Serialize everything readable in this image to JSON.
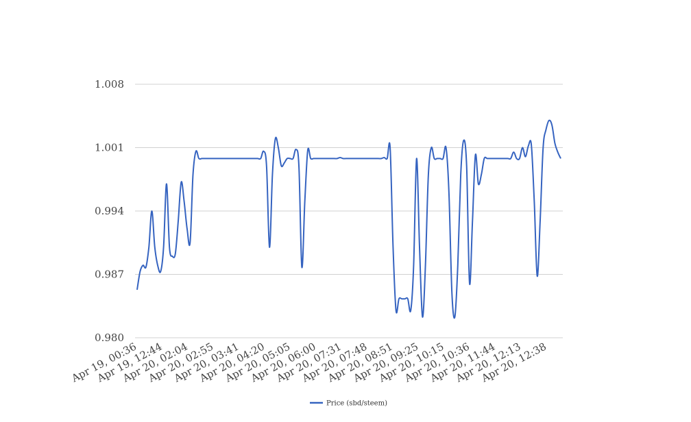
{
  "chart_data": {
    "type": "line",
    "title": "",
    "xlabel": "",
    "ylabel": "",
    "ylim": [
      0.98,
      1.008
    ],
    "y_ticks": [
      "0.980",
      "0.987",
      "0.994",
      "1.001",
      "1.008"
    ],
    "x_ticks": [
      "Apr 19, 00:36",
      "Apr 19, 12:44",
      "Apr 20, 02:04",
      "Apr 20, 02:55",
      "Apr 20, 03:41",
      "Apr 20, 04:20",
      "Apr 20, 05:05",
      "Apr 20, 06:00",
      "Apr 20, 07:31",
      "Apr 20, 07:48",
      "Apr 20, 08:51",
      "Apr 20, 09:25",
      "Apr 20, 10:15",
      "Apr 20, 10:36",
      "Apr 20, 11:44",
      "Apr 20, 12:13",
      "Apr 20, 12:38"
    ],
    "grid": true,
    "legend_position": "bottom",
    "series": [
      {
        "name": "Price (sbd/steem)",
        "color": "#3563c0",
        "values": [
          0.9853,
          0.9873,
          0.988,
          0.9878,
          0.99,
          0.994,
          0.99,
          0.988,
          0.9873,
          0.99,
          0.997,
          0.99,
          0.989,
          0.9893,
          0.993,
          0.9972,
          0.995,
          0.992,
          0.9905,
          0.998,
          1.0006,
          0.9998,
          0.9998,
          0.9998,
          0.9998,
          0.9998,
          0.9998,
          0.9998,
          0.9998,
          0.9998,
          0.9998,
          0.9998,
          0.9998,
          0.9998,
          0.9998,
          0.9998,
          0.9998,
          0.9998,
          0.9998,
          0.9998,
          0.9998,
          0.9998,
          0.9998,
          1.0006,
          0.999,
          0.99,
          0.998,
          1.002,
          1.001,
          0.999,
          0.9993,
          0.9998,
          0.9998,
          0.9998,
          1.0008,
          0.999,
          0.9878,
          0.995,
          1.0007,
          0.9998,
          0.9998,
          0.9998,
          0.9998,
          0.9998,
          0.9998,
          0.9998,
          0.9998,
          0.9998,
          0.9998,
          0.9999,
          0.9998,
          0.9998,
          0.9998,
          0.9998,
          0.9998,
          0.9998,
          0.9998,
          0.9998,
          0.9998,
          0.9998,
          0.9998,
          0.9998,
          0.9998,
          0.9998,
          0.9999,
          0.9998,
          1.001,
          0.99,
          0.983,
          0.9843,
          0.9843,
          0.9843,
          0.9843,
          0.983,
          0.988,
          0.9998,
          0.99,
          0.9823,
          0.988,
          0.998,
          1.001,
          0.9998,
          0.9998,
          0.9998,
          0.9998,
          1.001,
          0.996,
          0.985,
          0.9823,
          0.988,
          0.998,
          1.0018,
          0.999,
          0.986,
          0.993,
          1.0002,
          0.997,
          0.998,
          0.9998,
          0.9998,
          0.9998,
          0.9998,
          0.9998,
          0.9998,
          0.9998,
          0.9998,
          0.9998,
          0.9998,
          1.0005,
          0.9998,
          0.9998,
          1.001,
          1.0,
          1.0012,
          1.0013,
          0.995,
          0.9868,
          0.993,
          1.001,
          1.003,
          1.004,
          1.0035,
          1.0015,
          1.0005,
          0.9998
        ]
      }
    ]
  }
}
